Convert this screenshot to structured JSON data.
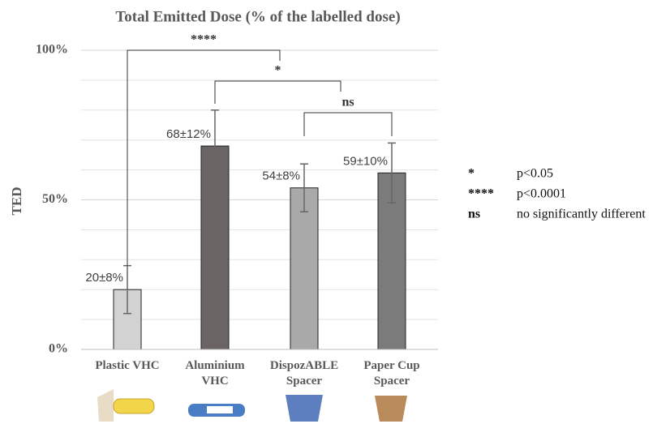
{
  "chart_data": {
    "type": "bar",
    "title": "Total Emitted Dose (% of the labelled dose)",
    "y_label": "TED",
    "categories": [
      "Plastic VHC",
      "Aluminium VHC",
      "DispozABLE Spacer",
      "Paper Cup Spacer"
    ],
    "values": [
      20,
      68,
      54,
      59
    ],
    "errors": [
      8,
      12,
      8,
      10
    ],
    "value_labels": [
      "20±8%",
      "68±12%",
      "54±8%",
      "59±10%"
    ],
    "colors": [
      "#d2d2d2",
      "#6b6464",
      "#a9a9a9",
      "#7b7b7b"
    ],
    "ylim": [
      0,
      100
    ],
    "yticks": [
      {
        "value": 0,
        "label": "0%"
      },
      {
        "value": 50,
        "label": "50%"
      },
      {
        "value": 100,
        "label": "100%"
      }
    ],
    "minor_yticks": [
      10,
      20,
      30,
      40,
      60,
      70,
      80,
      90
    ],
    "grid": true,
    "significance_brackets": [
      {
        "label": "****"
      },
      {
        "label": "*"
      },
      {
        "label": "ns"
      }
    ],
    "significance_legend": [
      {
        "symbol": "*",
        "meaning": "p<0.05"
      },
      {
        "symbol": "****",
        "meaning": "p<0.0001"
      },
      {
        "symbol": "ns",
        "meaning": "no significantly different"
      }
    ]
  }
}
